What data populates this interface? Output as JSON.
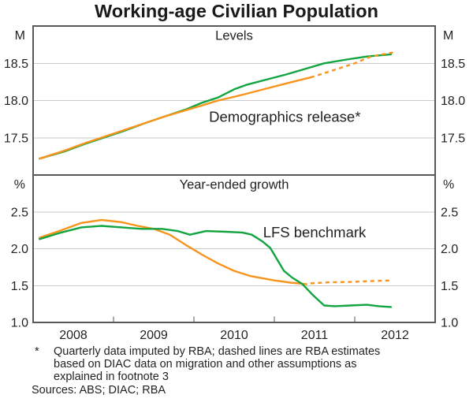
{
  "title": "Working-age Civilian Population",
  "colors": {
    "green": "#12A43F",
    "orange": "#F8941C",
    "grid": "#C9CACB",
    "frame": "#58595B",
    "text": "#231F20"
  },
  "chart_data": [
    {
      "type": "line",
      "panel": "top",
      "title": "Levels",
      "unit_left": "M",
      "unit_right": "M",
      "ylim": [
        17.0,
        19.0
      ],
      "yticks": [
        17.5,
        18.0,
        18.5
      ],
      "xlim": [
        2008,
        2013
      ],
      "grid": true,
      "series": [
        {
          "name": "LFS benchmark",
          "color": "green",
          "style": "solid",
          "points": [
            [
              2008.08,
              17.22
            ],
            [
              2008.4,
              17.32
            ],
            [
              2008.65,
              17.42
            ],
            [
              2008.9,
              17.51
            ],
            [
              2009.15,
              17.6
            ],
            [
              2009.4,
              17.7
            ],
            [
              2009.65,
              17.79
            ],
            [
              2009.9,
              17.88
            ],
            [
              2010.1,
              17.97
            ],
            [
              2010.3,
              18.04
            ],
            [
              2010.5,
              18.15
            ],
            [
              2010.65,
              18.21
            ],
            [
              2010.9,
              18.28
            ],
            [
              2011.15,
              18.35
            ],
            [
              2011.4,
              18.43
            ],
            [
              2011.62,
              18.5
            ],
            [
              2011.9,
              18.55
            ],
            [
              2012.15,
              18.59
            ],
            [
              2012.45,
              18.62
            ]
          ]
        },
        {
          "name": "Demographics release*",
          "color": "orange",
          "style": "solid",
          "points": [
            [
              2008.08,
              17.22
            ],
            [
              2008.4,
              17.33
            ],
            [
              2008.65,
              17.43
            ],
            [
              2008.9,
              17.52
            ],
            [
              2009.15,
              17.61
            ],
            [
              2009.4,
              17.7
            ],
            [
              2009.65,
              17.79
            ],
            [
              2009.9,
              17.87
            ],
            [
              2010.15,
              17.95
            ],
            [
              2010.3,
              18.0
            ],
            [
              2010.5,
              18.05
            ],
            [
              2010.65,
              18.09
            ],
            [
              2010.9,
              18.16
            ],
            [
              2011.15,
              18.23
            ],
            [
              2011.45,
              18.31
            ]
          ]
        },
        {
          "name": "Demographics release* (RBA estimate)",
          "color": "orange",
          "style": "dashed",
          "points": [
            [
              2011.45,
              18.31
            ],
            [
              2011.6,
              18.36
            ],
            [
              2011.8,
              18.43
            ],
            [
              2012.0,
              18.5
            ],
            [
              2012.2,
              18.59
            ],
            [
              2012.5,
              18.65
            ]
          ]
        }
      ],
      "annotations": [
        {
          "text": "Demographics release*",
          "t": 2011.13,
          "v": 17.78,
          "color": "orange"
        }
      ]
    },
    {
      "type": "line",
      "panel": "bottom",
      "title": "Year-ended growth",
      "unit_left": "%",
      "unit_right": "%",
      "ylim": [
        1.0,
        3.0
      ],
      "yticks": [
        1.0,
        1.5,
        2.0,
        2.5
      ],
      "xlim": [
        2008,
        2013
      ],
      "grid": true,
      "xtick_years": [
        2008,
        2009,
        2010,
        2011,
        2012
      ],
      "series": [
        {
          "name": "Demographics release*",
          "color": "orange",
          "style": "solid",
          "points": [
            [
              2008.08,
              2.15
            ],
            [
              2008.35,
              2.25
            ],
            [
              2008.6,
              2.35
            ],
            [
              2008.85,
              2.39
            ],
            [
              2009.1,
              2.36
            ],
            [
              2009.3,
              2.31
            ],
            [
              2009.5,
              2.27
            ],
            [
              2009.7,
              2.19
            ],
            [
              2009.9,
              2.05
            ],
            [
              2010.1,
              1.92
            ],
            [
              2010.3,
              1.8
            ],
            [
              2010.5,
              1.7
            ],
            [
              2010.7,
              1.63
            ],
            [
              2010.85,
              1.6
            ],
            [
              2011.0,
              1.57
            ],
            [
              2011.2,
              1.54
            ],
            [
              2011.4,
              1.52
            ]
          ]
        },
        {
          "name": "Demographics release* (RBA estimate)",
          "color": "orange",
          "style": "dashed",
          "points": [
            [
              2011.45,
              1.53
            ],
            [
              2011.7,
              1.545
            ],
            [
              2011.95,
              1.55
            ],
            [
              2012.2,
              1.56
            ],
            [
              2012.45,
              1.57
            ]
          ]
        },
        {
          "name": "LFS benchmark",
          "color": "green",
          "style": "solid",
          "points": [
            [
              2008.08,
              2.13
            ],
            [
              2008.35,
              2.22
            ],
            [
              2008.6,
              2.29
            ],
            [
              2008.85,
              2.31
            ],
            [
              2009.1,
              2.29
            ],
            [
              2009.35,
              2.27
            ],
            [
              2009.6,
              2.27
            ],
            [
              2009.8,
              2.24
            ],
            [
              2009.95,
              2.19
            ],
            [
              2010.15,
              2.24
            ],
            [
              2010.4,
              2.23
            ],
            [
              2010.6,
              2.22
            ],
            [
              2010.72,
              2.19
            ],
            [
              2010.85,
              2.1
            ],
            [
              2010.95,
              2.01
            ],
            [
              2011.12,
              1.7
            ],
            [
              2011.22,
              1.61
            ],
            [
              2011.35,
              1.52
            ],
            [
              2011.48,
              1.37
            ],
            [
              2011.62,
              1.23
            ],
            [
              2011.75,
              1.22
            ],
            [
              2011.95,
              1.23
            ],
            [
              2012.15,
              1.24
            ],
            [
              2012.3,
              1.22
            ],
            [
              2012.45,
              1.21
            ]
          ]
        }
      ],
      "annotations": [
        {
          "text": "LFS benchmark",
          "t": 2011.5,
          "v": 2.22,
          "color": "green"
        }
      ]
    }
  ],
  "footnote": {
    "marker": "*",
    "lines": [
      "Quarterly data imputed by RBA; dashed lines are RBA estimates",
      "based on DIAC data on migration and other assumptions as",
      "explained in footnote 3"
    ],
    "sources": "Sources: ABS; DIAC; RBA"
  }
}
